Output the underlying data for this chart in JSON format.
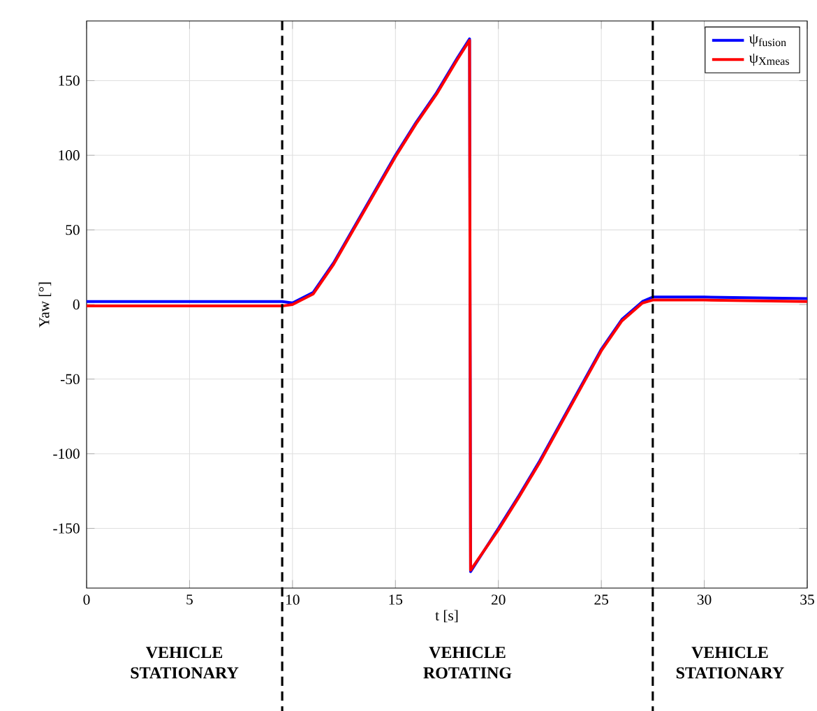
{
  "chart_data": {
    "type": "line",
    "xlabel": "t [s]",
    "ylabel": "Yaw [°]",
    "xlim": [
      0,
      35
    ],
    "ylim": [
      -190,
      190
    ],
    "xticks": [
      0,
      5,
      10,
      15,
      20,
      25,
      30,
      35
    ],
    "yticks": [
      -150,
      -100,
      -50,
      0,
      50,
      100,
      150
    ],
    "grid": true,
    "legend": "top right",
    "series": [
      {
        "name": "ψ$_{fusion}$",
        "color": "#0000ff",
        "x": [
          0,
          5,
          9.5,
          10,
          11,
          12,
          13,
          14,
          15,
          16,
          17,
          18,
          18.6,
          18.65,
          20,
          21,
          22,
          23,
          24,
          25,
          26,
          27,
          27.5,
          30,
          35
        ],
        "values": [
          2,
          2,
          2,
          1,
          8,
          28,
          52,
          76,
          100,
          122,
          142,
          165,
          178,
          -179,
          -150,
          -128,
          -105,
          -80,
          -55,
          -30,
          -10,
          2,
          5,
          5,
          4
        ]
      },
      {
        "name": "ψ$_{Xmeas}$",
        "color": "#ff0000",
        "x": [
          0,
          5,
          9.5,
          10,
          11,
          12,
          13,
          14,
          15,
          16,
          17,
          18,
          18.6,
          18.65,
          20,
          21,
          22,
          23,
          24,
          25,
          26,
          27,
          27.5,
          30,
          35
        ],
        "values": [
          -1,
          -1,
          -1,
          0,
          7,
          27,
          51,
          75,
          99,
          121,
          141,
          164,
          177,
          -178,
          -151,
          -129,
          -106,
          -81,
          -56,
          -31,
          -11,
          1,
          3,
          3,
          2
        ]
      }
    ],
    "ref_lines": [
      {
        "axis": "x",
        "value": 9.5,
        "color": "#000000",
        "line_style": "dashed"
      },
      {
        "axis": "x",
        "value": 27.5,
        "color": "#000000",
        "line_style": "dashed"
      }
    ],
    "annotations": [
      "VEHICLE STATIONARY",
      "VEHICLE ROTATING",
      "VEHICLE STATIONARY"
    ]
  }
}
